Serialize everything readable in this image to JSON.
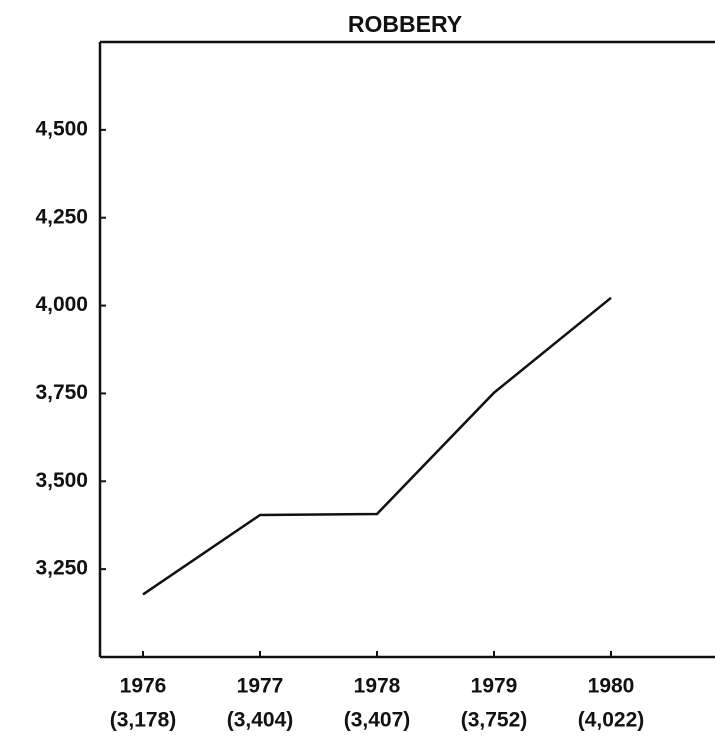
{
  "chart_data": {
    "type": "line",
    "title": "ROBBERY",
    "categories": [
      "1976",
      "1977",
      "1978",
      "1979",
      "1980"
    ],
    "values": [
      3178,
      3404,
      3407,
      3752,
      4022
    ],
    "value_labels": [
      "(3,178)",
      "(3,404)",
      "(3,407)",
      "(3,752)",
      "(4,022)"
    ],
    "color": "#111111",
    "ylim": [
      3000,
      4750
    ],
    "yticks": [
      {
        "value": 3250,
        "label": "3,250"
      },
      {
        "value": 3500,
        "label": "3,500"
      },
      {
        "value": 3750,
        "label": "3,750"
      },
      {
        "value": 4000,
        "label": "4,000"
      },
      {
        "value": 4250,
        "label": "4,250"
      },
      {
        "value": 4500,
        "label": "4,500"
      }
    ]
  }
}
